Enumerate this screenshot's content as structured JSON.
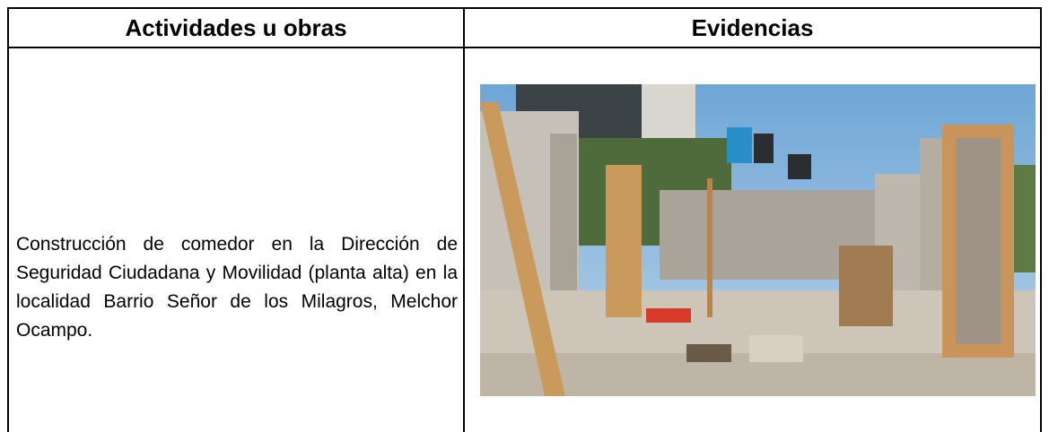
{
  "table": {
    "headers": [
      "Actividades u obras",
      "Evidencias"
    ],
    "rows": [
      [
        "Construcción de comedor en la Dirección de Seguridad Ciudadana y Movilidad (planta alta) en la localidad Barrio Señor de los Milagros, Melchor Ocampo."
      ]
    ]
  }
}
